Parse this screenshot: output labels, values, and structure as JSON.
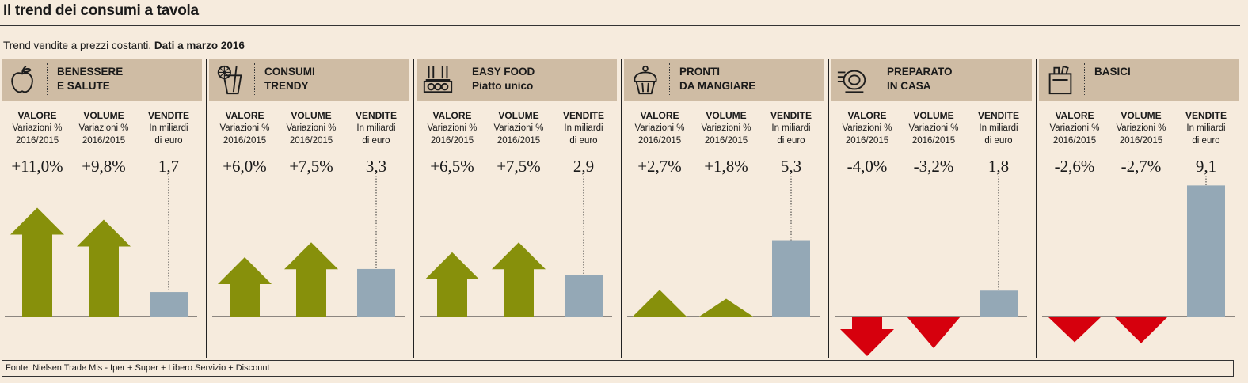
{
  "title": "Il trend dei consumi a tavola",
  "subtitle_plain": "Trend vendite a prezzi costanti.",
  "subtitle_bold": "Dati a marzo 2016",
  "column_headers": {
    "valore": {
      "label": "VALORE",
      "sub": "Variazioni %\n2016/2015"
    },
    "volume": {
      "label": "VOLUME",
      "sub": "Variazioni %\n2016/2015"
    },
    "vendite": {
      "label": "VENDITE",
      "sub": "In miliardi\ndi euro"
    }
  },
  "colors": {
    "positive": "#87900b",
    "negative": "#d6000d",
    "sales_bar": "#94a8b6",
    "header_bg": "#cfbca4",
    "background": "#f6ebdd"
  },
  "chart_data": {
    "type": "bar",
    "title": "Il trend dei consumi a tavola",
    "categories": [
      "Benessere e salute",
      "Consumi trendy",
      "Easy food",
      "Pronti da mangiare",
      "Preparato in casa",
      "Basici"
    ],
    "series": [
      {
        "name": "Valore (variazioni % 2016/2015)",
        "values": [
          11.0,
          6.0,
          6.5,
          2.7,
          -4.0,
          -2.6
        ],
        "labels": [
          "+11,0%",
          "+6,0%",
          "+6,5%",
          "+2,7%",
          "-4,0%",
          "-2,6%"
        ]
      },
      {
        "name": "Volume (variazioni % 2016/2015)",
        "values": [
          9.8,
          7.5,
          7.5,
          1.8,
          -3.2,
          -2.7
        ],
        "labels": [
          "+9,8%",
          "+7,5%",
          "+7,5%",
          "+1,8%",
          "-3,2%",
          "-2,7%"
        ]
      },
      {
        "name": "Vendite (miliardi di euro)",
        "values": [
          1.7,
          3.3,
          2.9,
          5.3,
          1.8,
          9.1
        ],
        "labels": [
          "1,7",
          "3,3",
          "2,9",
          "5,3",
          "1,8",
          "9,1"
        ]
      }
    ]
  },
  "panels": [
    {
      "title1": "BENESSERE",
      "title2": "E SALUTE",
      "icon": "apple-icon"
    },
    {
      "title1": "CONSUMI",
      "title2": "TRENDY",
      "icon": "drink-icon"
    },
    {
      "title1": "EASY FOOD",
      "title2": "Piatto unico",
      "icon": "sushi-icon"
    },
    {
      "title1": "PRONTI",
      "title2": "DA MANGIARE",
      "icon": "cupcake-icon"
    },
    {
      "title1": "PREPARATO",
      "title2": "IN CASA",
      "icon": "pot-icon"
    },
    {
      "title1": "BASICI",
      "title2": "",
      "icon": "grocery-bag-icon"
    }
  ],
  "footer": "Fonte: Nielsen Trade Mis - Iper + Super + Libero Servizio + Discount"
}
